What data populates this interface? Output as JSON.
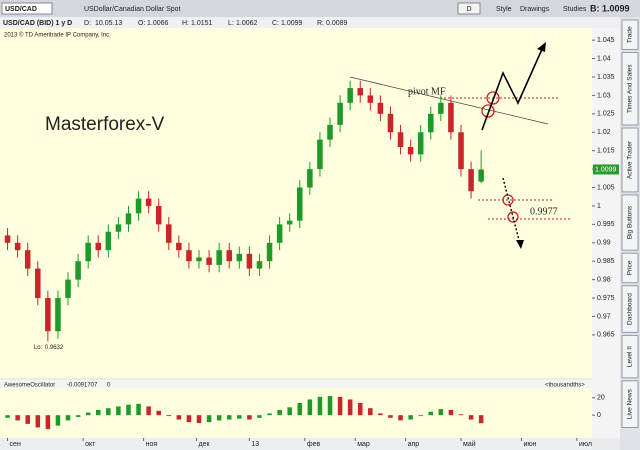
{
  "toolbar": {
    "symbol": "USD/CAD",
    "description": "USDollar/Canadian Dollar Spot",
    "period_button": "D",
    "buttons": [
      "Style",
      "Drawings",
      "Studies"
    ],
    "bid_label": "B:"
  },
  "info": {
    "date_label": "D:",
    "date": "10.05.13",
    "open_label": "O:",
    "high_label": "H:",
    "low_label": "L:",
    "close_label": "C:",
    "range_label": "R:",
    "range": 0.0089
  },
  "copyright": "2013 © TD Ameritrade IP Company, Inc.",
  "side_tabs": [
    "Trade",
    "Times And Sales",
    "Active Trader",
    "Big Buttons",
    "Price",
    "Dashboard",
    "Level II",
    "Live News"
  ],
  "study": {
    "name": "AwesomeOscillator",
    "current": -0.0091707,
    "zero": "0",
    "units": "<thousandths>"
  },
  "chart_data": [
    {
      "type": "candlestick",
      "title": "USD/CAD (BID) 1 y D",
      "x": [
        0,
        4,
        8,
        12,
        16,
        20,
        24,
        28,
        32,
        36,
        40,
        44,
        48,
        52,
        56,
        60,
        64,
        68,
        72,
        76,
        80,
        84,
        88,
        92,
        96,
        100,
        104,
        108,
        112,
        116,
        120,
        124,
        128,
        132,
        136,
        140,
        144,
        148,
        152,
        156,
        160,
        164,
        168,
        172,
        176,
        180,
        184,
        188
      ],
      "open": [
        0.992,
        0.99,
        0.988,
        0.983,
        0.975,
        0.966,
        0.975,
        0.98,
        0.985,
        0.99,
        0.988,
        0.993,
        0.995,
        0.998,
        1.002,
        1.0,
        0.995,
        0.99,
        0.988,
        0.985,
        0.986,
        0.984,
        0.988,
        0.985,
        0.987,
        0.983,
        0.985,
        0.99,
        0.995,
        0.996,
        1.005,
        1.01,
        1.018,
        1.022,
        1.028,
        1.032,
        1.03,
        1.028,
        1.025,
        1.02,
        1.016,
        1.014,
        1.02,
        1.025,
        1.028,
        1.02,
        1.01,
        1.0066
      ],
      "high": [
        0.994,
        0.992,
        0.99,
        0.985,
        0.977,
        0.977,
        0.982,
        0.987,
        0.992,
        0.992,
        0.995,
        0.997,
        1.0,
        1.004,
        1.004,
        1.002,
        0.997,
        0.992,
        0.99,
        0.988,
        0.988,
        0.99,
        0.99,
        0.989,
        0.989,
        0.987,
        0.992,
        0.997,
        0.998,
        1.007,
        1.012,
        1.02,
        1.024,
        1.03,
        1.034,
        1.034,
        1.032,
        1.03,
        1.027,
        1.022,
        1.018,
        1.022,
        1.027,
        1.03,
        1.03,
        1.022,
        1.012,
        1.0151
      ],
      "low": [
        0.988,
        0.986,
        0.981,
        0.973,
        0.9632,
        0.964,
        0.973,
        0.978,
        0.983,
        0.986,
        0.986,
        0.991,
        0.993,
        0.996,
        0.998,
        0.993,
        0.988,
        0.986,
        0.983,
        0.983,
        0.982,
        0.982,
        0.983,
        0.983,
        0.981,
        0.981,
        0.983,
        0.988,
        0.993,
        0.994,
        1.003,
        1.008,
        1.016,
        1.02,
        1.026,
        1.028,
        1.026,
        1.023,
        1.018,
        1.014,
        1.012,
        1.012,
        1.018,
        1.023,
        1.018,
        1.008,
        1.002,
        1.0062
      ],
      "close": [
        0.99,
        0.988,
        0.983,
        0.975,
        0.966,
        0.975,
        0.98,
        0.985,
        0.99,
        0.988,
        0.993,
        0.995,
        0.998,
        1.002,
        1.0,
        0.995,
        0.99,
        0.988,
        0.985,
        0.986,
        0.984,
        0.988,
        0.985,
        0.987,
        0.983,
        0.985,
        0.99,
        0.995,
        0.996,
        1.005,
        1.01,
        1.018,
        1.022,
        1.028,
        1.032,
        1.03,
        1.028,
        1.025,
        1.02,
        1.016,
        1.014,
        1.02,
        1.025,
        1.028,
        1.02,
        1.01,
        1.004,
        1.0099
      ],
      "up_color": "#1f9a2a",
      "down_color": "#c8262a",
      "xlim": [
        -3,
        232
      ],
      "xticks": [
        {
          "value": 0,
          "label": "сен"
        },
        {
          "value": 30,
          "label": "окт"
        },
        {
          "value": 54,
          "label": "ноя"
        },
        {
          "value": 75,
          "label": "дек"
        },
        {
          "value": 96,
          "label": "13"
        },
        {
          "value": 118,
          "label": "фев"
        },
        {
          "value": 138,
          "label": "мар"
        },
        {
          "value": 158,
          "label": "апр"
        },
        {
          "value": 180,
          "label": "май"
        },
        {
          "value": 204,
          "label": "июн"
        },
        {
          "value": 226,
          "label": "июл"
        }
      ],
      "ylim": [
        0.9533,
        1.0483
      ],
      "yticks": [
        1.045,
        1.04,
        1.035,
        1.03,
        1.025,
        1.02,
        1.015,
        1.01,
        1.005,
        1,
        0.995,
        0.99,
        0.985,
        0.98,
        0.975,
        0.97,
        0.965
      ],
      "low_label": "Lo:",
      "annotations": {
        "brand": "Masterforex-V",
        "pivot": "pivot MF",
        "level": "0.9977"
      }
    },
    {
      "type": "bar",
      "name": "AwesomeOscillator",
      "values": [
        -3,
        -6,
        -10,
        -14,
        -16,
        -12,
        -6,
        -2,
        3,
        6,
        8,
        10,
        12,
        13,
        10,
        5,
        -1,
        -5,
        -8,
        -9,
        -8,
        -6,
        -5,
        -4,
        -5,
        -3,
        2,
        6,
        9,
        14,
        18,
        21,
        22,
        21,
        18,
        14,
        8,
        2,
        -3,
        -6,
        -5,
        -1,
        4,
        7,
        6,
        1,
        -5,
        -9.1707
      ],
      "up_color": "#1f9a2a",
      "down_color": "#c8262a",
      "ylim": [
        -25,
        30
      ],
      "yticks": [
        20,
        0
      ]
    }
  ]
}
